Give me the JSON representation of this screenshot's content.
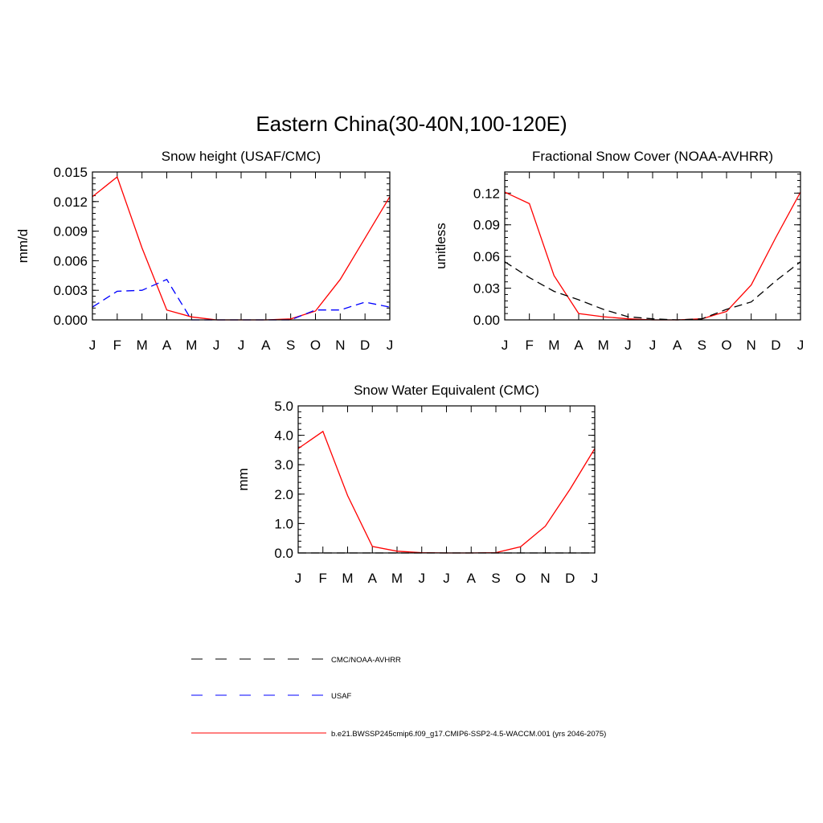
{
  "figure_title": "Eastern China(30-40N,100-120E)",
  "month_labels": [
    "J",
    "F",
    "M",
    "A",
    "M",
    "J",
    "J",
    "A",
    "S",
    "O",
    "N",
    "D",
    "J"
  ],
  "legend": [
    {
      "label": "CMC/NOAA-AVHRR",
      "color": "#000000",
      "dash": "dashed"
    },
    {
      "label": "USAF",
      "color": "#0000ff",
      "dash": "dashed"
    },
    {
      "label": "b.e21.BWSSP245cmip6.f09_g17.CMIP6-SSP2-4.5-WACCM.001 (yrs 2046-2075)",
      "color": "#ff0000",
      "dash": "solid"
    }
  ],
  "chart_data": [
    {
      "type": "line",
      "title": "Snow height (USAF/CMC)",
      "xlabel": "",
      "ylabel": "mm/d",
      "ylim": [
        0,
        0.015
      ],
      "yticks": [
        0,
        0.003,
        0.006,
        0.009,
        0.012,
        0.015
      ],
      "ytick_labels": [
        "0.000",
        "0.003",
        "0.006",
        "0.009",
        "0.012",
        "0.015"
      ],
      "categories": [
        "J",
        "F",
        "M",
        "A",
        "M",
        "J",
        "J",
        "A",
        "S",
        "O",
        "N",
        "D",
        "J"
      ],
      "series": [
        {
          "name": "b.e21.BWSSP245cmip6.f09_g17.CMIP6-SSP2-4.5-WACCM.001 (yrs 2046-2075)",
          "color": "#ff0000",
          "dash": "solid",
          "values": [
            0.0125,
            0.0145,
            0.0073,
            0.001,
            0.0003,
            0.0,
            0.0,
            0.0,
            0.0001,
            0.0009,
            0.0041,
            0.0083,
            0.0125
          ]
        },
        {
          "name": "USAF",
          "color": "#0000ff",
          "dash": "dashed",
          "values": [
            0.0013,
            0.0029,
            0.003,
            0.0041,
            0.0,
            0.0,
            0.0,
            0.0,
            0.0,
            0.001,
            0.001,
            0.0018,
            0.0013
          ]
        }
      ]
    },
    {
      "type": "line",
      "title": "Fractional Snow Cover (NOAA-AVHRR)",
      "xlabel": "",
      "ylabel": "unitless",
      "ylim": [
        0,
        0.14
      ],
      "yticks": [
        0,
        0.03,
        0.06,
        0.09,
        0.12
      ],
      "ytick_labels": [
        "0.00",
        "0.03",
        "0.06",
        "0.09",
        "0.12"
      ],
      "categories": [
        "J",
        "F",
        "M",
        "A",
        "M",
        "J",
        "J",
        "A",
        "S",
        "O",
        "N",
        "D",
        "J"
      ],
      "series": [
        {
          "name": "b.e21.BWSSP245cmip6.f09_g17.CMIP6-SSP2-4.5-WACCM.001 (yrs 2046-2075)",
          "color": "#ff0000",
          "dash": "solid",
          "values": [
            0.121,
            0.11,
            0.042,
            0.006,
            0.003,
            0.001,
            0.0,
            0.0,
            0.001,
            0.008,
            0.033,
            0.078,
            0.121
          ]
        },
        {
          "name": "CMC/NOAA-AVHRR",
          "color": "#000000",
          "dash": "dashed",
          "values": [
            0.055,
            0.04,
            0.027,
            0.019,
            0.01,
            0.003,
            0.001,
            0.0,
            0.001,
            0.01,
            0.017,
            0.037,
            0.055
          ]
        }
      ]
    },
    {
      "type": "line",
      "title": "Snow Water Equivalent (CMC)",
      "xlabel": "",
      "ylabel": "mm",
      "ylim": [
        0,
        5.0
      ],
      "yticks": [
        0,
        1,
        2,
        3,
        4,
        5
      ],
      "ytick_labels": [
        "0.0",
        "1.0",
        "2.0",
        "3.0",
        "4.0",
        "5.0"
      ],
      "categories": [
        "J",
        "F",
        "M",
        "A",
        "M",
        "J",
        "J",
        "A",
        "S",
        "O",
        "N",
        "D",
        "J"
      ],
      "series": [
        {
          "name": "b.e21.BWSSP245cmip6.f09_g17.CMIP6-SSP2-4.5-WACCM.001 (yrs 2046-2075)",
          "color": "#ff0000",
          "dash": "solid",
          "values": [
            3.55,
            4.13,
            1.95,
            0.22,
            0.06,
            0.01,
            0.0,
            0.0,
            0.01,
            0.21,
            0.91,
            2.17,
            3.55
          ]
        },
        {
          "name": "CMC/NOAA-AVHRR",
          "color": "#000000",
          "dash": "dashed",
          "values": [
            0,
            0,
            0,
            0,
            0,
            0,
            0,
            0,
            0,
            0,
            0,
            0,
            0
          ]
        }
      ]
    }
  ]
}
